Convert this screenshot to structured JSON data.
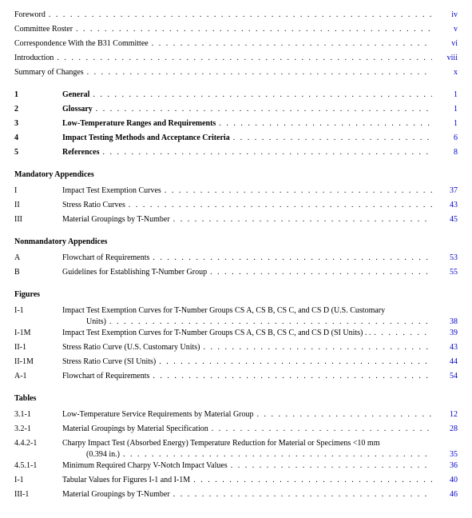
{
  "frontmatter": [
    {
      "title": "Foreword",
      "page": "iv"
    },
    {
      "title": "Committee Roster",
      "page": "v"
    },
    {
      "title": "Correspondence With the B31 Committee",
      "page": "vi"
    },
    {
      "title": "Introduction",
      "page": "viii"
    },
    {
      "title": "Summary of Changes",
      "page": "x"
    }
  ],
  "chapters": [
    {
      "num": "1",
      "title": "General",
      "page": "1"
    },
    {
      "num": "2",
      "title": "Glossary",
      "page": "1"
    },
    {
      "num": "3",
      "title": "Low-Temperature Ranges and Requirements",
      "page": "1"
    },
    {
      "num": "4",
      "title": "Impact Testing Methods and Acceptance Criteria",
      "page": "6"
    },
    {
      "num": "5",
      "title": "References",
      "page": "8"
    }
  ],
  "mandatory_heading": "Mandatory Appendices",
  "mandatory": [
    {
      "num": "I",
      "title": "Impact Test Exemption Curves",
      "page": "37"
    },
    {
      "num": "II",
      "title": "Stress Ratio Curves",
      "page": "43"
    },
    {
      "num": "III",
      "title": "Material Groupings by T-Number",
      "page": "45"
    }
  ],
  "nonmandatory_heading": "Nonmandatory Appendices",
  "nonmandatory": [
    {
      "num": "A",
      "title": "Flowchart of Requirements",
      "page": "53"
    },
    {
      "num": "B",
      "title": "Guidelines for Establishing T-Number Group",
      "page": "55"
    }
  ],
  "figures_heading": "Figures",
  "figures": [
    {
      "num": "I-1",
      "title_a": "Impact Test Exemption Curves for T-Number Groups CS A, CS B, CS C, and CS D (U.S. Customary",
      "title_b": "Units)",
      "page": "38",
      "multi": true
    },
    {
      "num": "I-1M",
      "title": "Impact Test Exemption Curves for T-Number Groups CS A, CS B, CS C, and CS D (SI Units) .  .",
      "page": "39"
    },
    {
      "num": "II-1",
      "title": "Stress Ratio Curve (U.S. Customary Units)",
      "page": "43"
    },
    {
      "num": "II-1M",
      "title": "Stress Ratio Curve (SI Units)",
      "page": "44"
    },
    {
      "num": "A-1",
      "title": "Flowchart of Requirements",
      "page": "54"
    }
  ],
  "tables_heading": "Tables",
  "tables": [
    {
      "num": "3.1-1",
      "title": "Low-Temperature Service Requirements by Material Group",
      "page": "12"
    },
    {
      "num": "3.2-1",
      "title": "Material Groupings by Material Specification",
      "page": "28"
    },
    {
      "num": "4.4.2-1",
      "title_a": "Charpy Impact Test (Absorbed Energy) Temperature Reduction for Material or Specimens <10 mm",
      "title_b": "(0.394 in.)",
      "page": "35",
      "multi": true
    },
    {
      "num": "4.5.1-1",
      "title": "Minimum Required Charpy V-Notch Impact Values",
      "page": "36"
    },
    {
      "num": "I-1",
      "title": "Tabular Values for Figures I-1 and I-1M",
      "page": "40"
    },
    {
      "num": "III-1",
      "title": "Material Groupings by T-Number",
      "page": "46"
    }
  ]
}
